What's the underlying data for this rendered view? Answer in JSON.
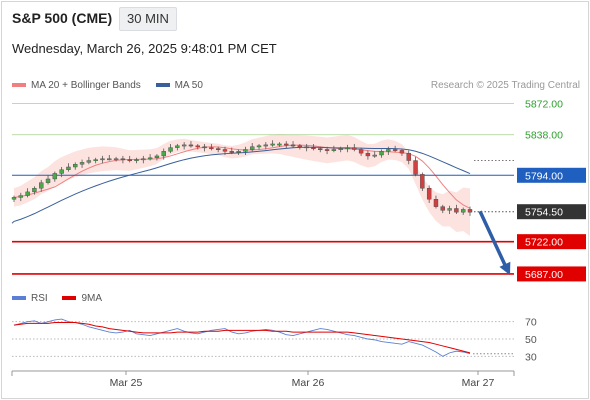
{
  "header": {
    "title": "S&P 500 (CME)",
    "interval": "30 MIN",
    "timestamp": "Wednesday, March 26, 2025 9:48:01 PM CET"
  },
  "legend": {
    "ma20_label": "MA 20 + Bollinger Bands",
    "ma20_color": "#f08080",
    "ma50_label": "MA 50",
    "ma50_color": "#3a5f9a",
    "credit": "Research © 2025 Trading Central"
  },
  "rsi_legend": {
    "rsi_label": "RSI",
    "rsi_color": "#5b7fd4",
    "ma9_label": "9MA",
    "ma9_color": "#e00000"
  },
  "chart_data": {
    "type": "candlestick",
    "x_labels": [
      "Mar 25",
      "Mar 26",
      "Mar 27"
    ],
    "price_range": [
      5675,
      5880
    ],
    "current_price": {
      "value": 5754.5,
      "label": "5754.50",
      "color": "#333333"
    },
    "levels": [
      {
        "label": "5872.00",
        "value": 5872,
        "kind": "resistance",
        "color": "#2ca02c",
        "line": "#a8d08d"
      },
      {
        "label": "5838.00",
        "value": 5838,
        "kind": "resistance",
        "color": "#2ca02c",
        "line": "#a8d08d"
      },
      {
        "label": "5794.00",
        "value": 5794,
        "kind": "pivot",
        "color": "#1f5fbf",
        "line": "#1f5fbf"
      },
      {
        "label": "5722.00",
        "value": 5722,
        "kind": "support",
        "color": "#e00000",
        "line": "#e00000"
      },
      {
        "label": "5687.00",
        "value": 5687,
        "kind": "support",
        "color": "#e00000",
        "line": "#e00000"
      }
    ],
    "price_path": [
      5770,
      5772,
      5776,
      5780,
      5786,
      5790,
      5796,
      5800,
      5803,
      5806,
      5808,
      5810,
      5811,
      5812,
      5812,
      5812,
      5811,
      5810,
      5811,
      5812,
      5813,
      5815,
      5820,
      5824,
      5826,
      5827,
      5826,
      5825,
      5824,
      5823,
      5822,
      5820,
      5819,
      5820,
      5822,
      5825,
      5826,
      5827,
      5828,
      5828,
      5827,
      5826,
      5825,
      5824,
      5823,
      5822,
      5821,
      5822,
      5823,
      5824,
      5822,
      5818,
      5815,
      5816,
      5820,
      5822,
      5821,
      5818,
      5810,
      5795,
      5780,
      5768,
      5760,
      5756,
      5758,
      5754,
      5757,
      5754
    ],
    "arrow": {
      "from": 5755,
      "to": 5690,
      "color": "#2e5ea8"
    },
    "rsi": {
      "levels": [
        70,
        50,
        30
      ],
      "level_labels": [
        "70",
        "50",
        "30"
      ],
      "range": [
        20,
        80
      ],
      "rsi_values": [
        66,
        68,
        70,
        71,
        68,
        70,
        72,
        73,
        70,
        69,
        67,
        64,
        62,
        60,
        58,
        57,
        58,
        60,
        56,
        55,
        54,
        56,
        58,
        60,
        62,
        59,
        57,
        56,
        58,
        60,
        61,
        62,
        58,
        56,
        57,
        59,
        60,
        61,
        60,
        58,
        55,
        54,
        56,
        58,
        60,
        62,
        61,
        59,
        57,
        55,
        54,
        52,
        50,
        49,
        47,
        46,
        45,
        44,
        47,
        45,
        43,
        39,
        35,
        30,
        34,
        36,
        35,
        33
      ],
      "ma9_values": [
        66,
        67,
        68,
        68,
        68,
        68,
        69,
        69,
        69,
        69,
        68,
        67,
        65,
        64,
        62,
        61,
        60,
        59,
        58,
        57,
        57,
        57,
        57,
        57,
        58,
        58,
        58,
        58,
        59,
        59,
        59,
        60,
        60,
        60,
        60,
        60,
        60,
        60,
        59,
        59,
        59,
        58,
        58,
        58,
        58,
        58,
        58,
        58,
        58,
        58,
        57,
        56,
        55,
        54,
        53,
        52,
        51,
        50,
        49,
        48,
        47,
        46,
        44,
        42,
        40,
        38,
        36,
        34
      ]
    }
  }
}
